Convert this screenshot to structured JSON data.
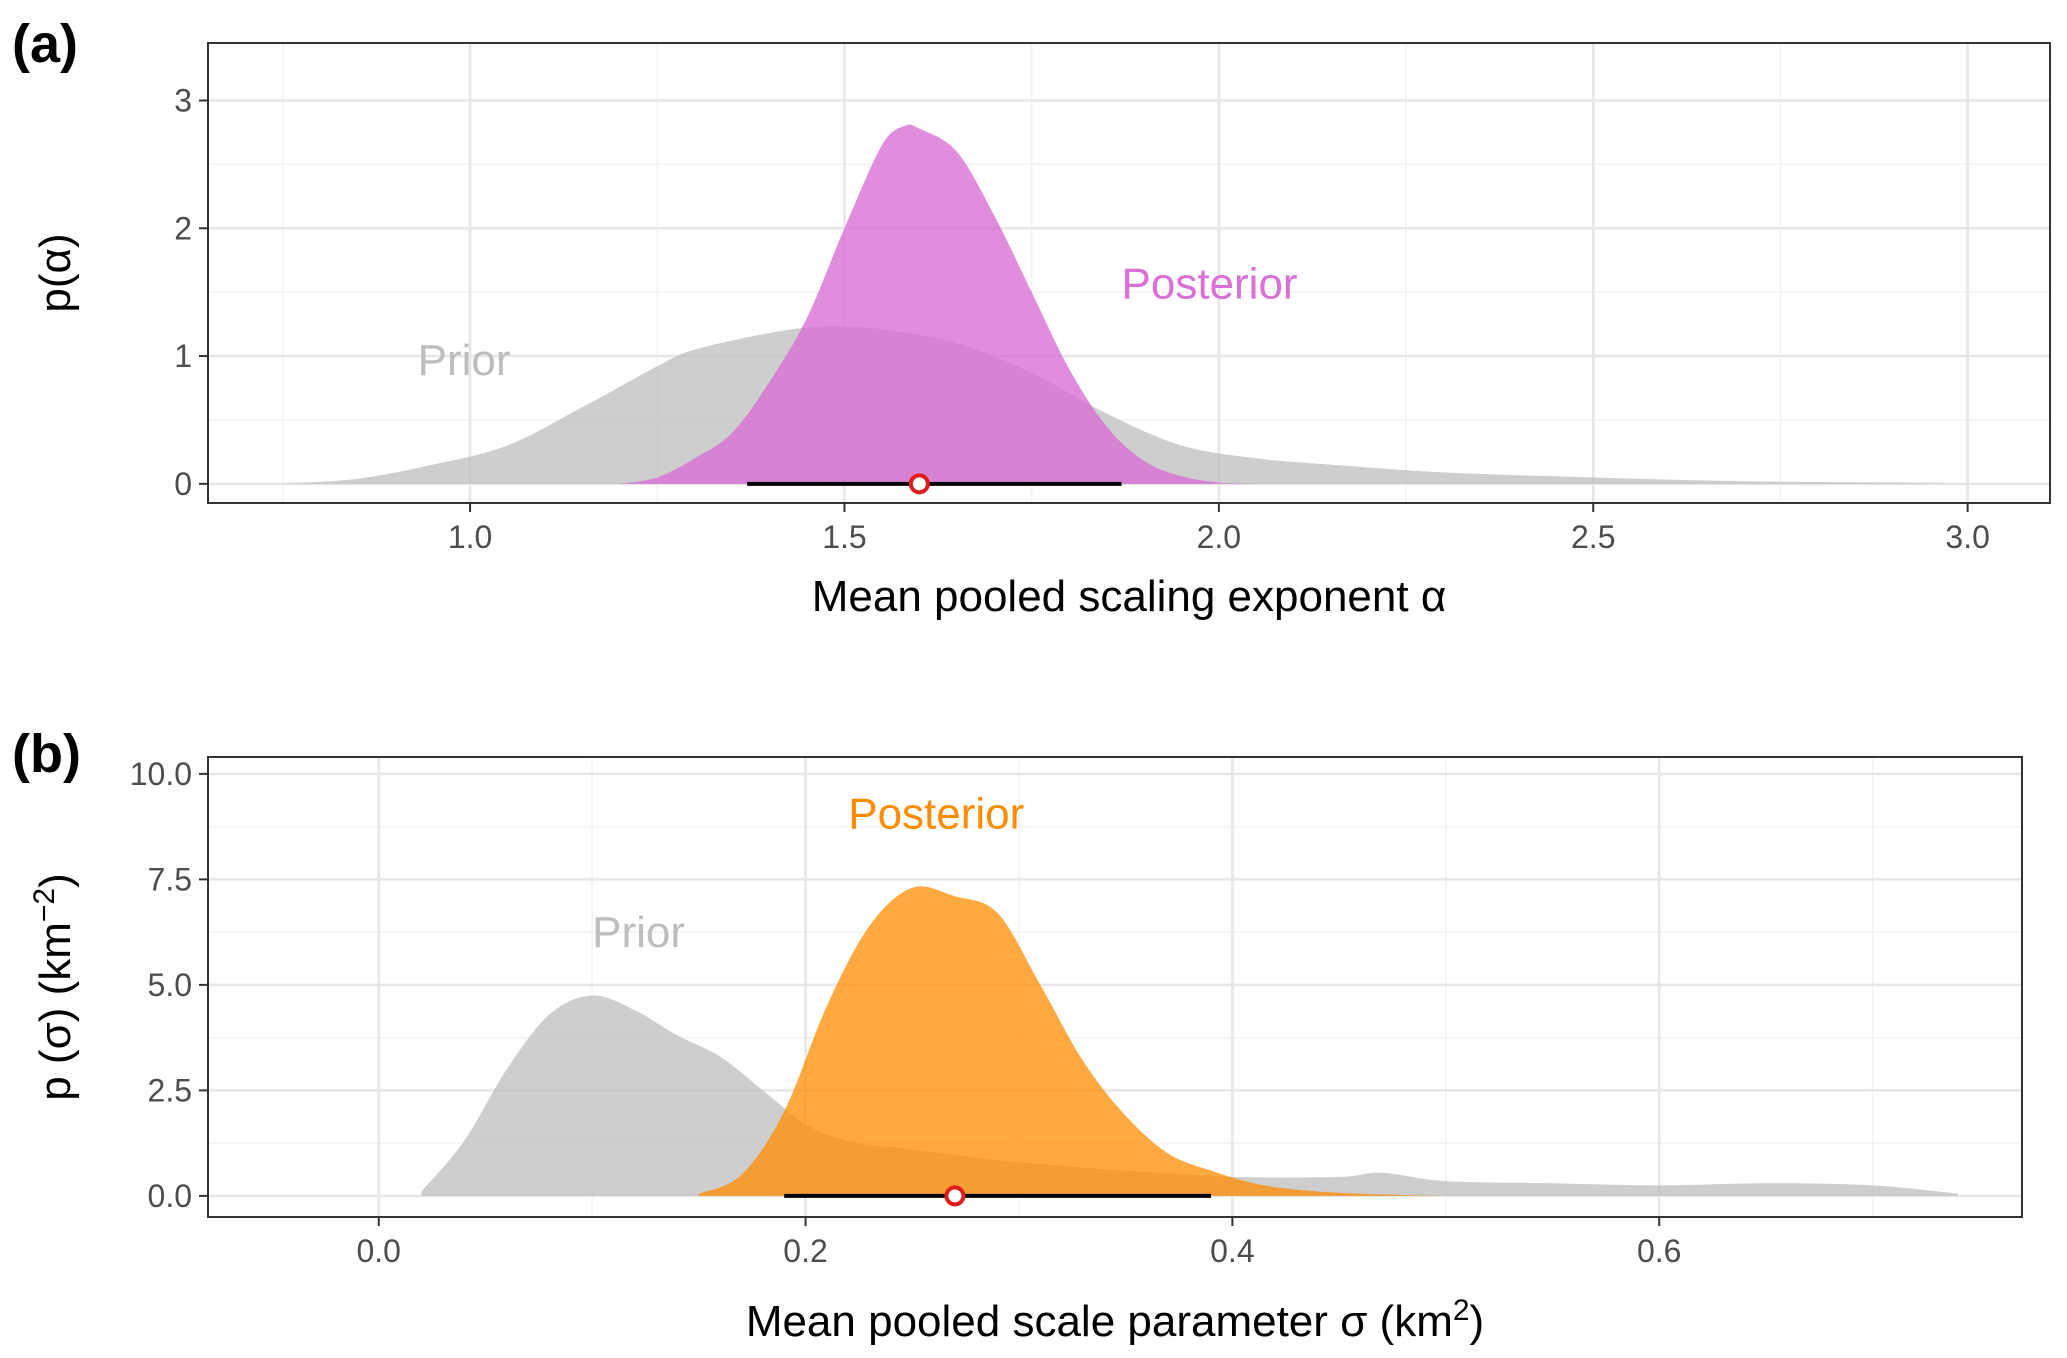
{
  "chart_data": [
    {
      "panel": "(a)",
      "type": "area",
      "xlabel": "Mean pooled scaling exponent α",
      "ylabel": "p(α)",
      "xlim": [
        0.65,
        3.11
      ],
      "ylim": [
        -0.15,
        3.45
      ],
      "xticks": [
        1.0,
        1.5,
        2.0,
        2.5,
        3.0
      ],
      "xtick_labels": [
        "1.0",
        "1.5",
        "2.0",
        "2.5",
        "3.0"
      ],
      "yticks": [
        0,
        1,
        2,
        3
      ],
      "ytick_labels": [
        "0",
        "1",
        "2",
        "3"
      ],
      "grid": true,
      "series": [
        {
          "name": "Prior",
          "color": "#bdbdbd",
          "opacity": 0.75,
          "label_pos": [
            0.93,
            0.85
          ],
          "x": [
            0.75,
            0.85,
            0.95,
            1.05,
            1.15,
            1.25,
            1.3,
            1.4,
            1.47,
            1.55,
            1.65,
            1.75,
            1.85,
            1.95,
            2.05,
            2.15,
            2.3,
            2.5,
            2.7,
            2.9,
            2.98
          ],
          "y": [
            0.0,
            0.04,
            0.15,
            0.3,
            0.6,
            0.92,
            1.05,
            1.18,
            1.23,
            1.21,
            1.1,
            0.87,
            0.55,
            0.3,
            0.2,
            0.15,
            0.09,
            0.05,
            0.02,
            0.01,
            0.0
          ]
        },
        {
          "name": "Posterior",
          "color": "#da70d6",
          "opacity": 0.8,
          "label_pos": [
            1.87,
            1.45
          ],
          "x": [
            1.2,
            1.25,
            1.3,
            1.35,
            1.4,
            1.45,
            1.5,
            1.55,
            1.58,
            1.6,
            1.65,
            1.7,
            1.75,
            1.8,
            1.85,
            1.9,
            1.95,
            2.0,
            2.05
          ],
          "y": [
            0.0,
            0.05,
            0.2,
            0.4,
            0.8,
            1.3,
            2.0,
            2.65,
            2.8,
            2.78,
            2.6,
            2.1,
            1.5,
            0.9,
            0.45,
            0.18,
            0.06,
            0.01,
            0.0
          ]
        }
      ],
      "interval": {
        "low": 1.37,
        "high": 1.87,
        "point": 1.6
      }
    },
    {
      "panel": "(b)",
      "type": "area",
      "xlabel": "Mean pooled scale parameter σ (km",
      "xlabel_sup": "2",
      "xlabel_end": ")",
      "ylabel": "p (σ) (km",
      "ylabel_sup": "−2",
      "ylabel_end": ")",
      "xlim": [
        -0.08,
        0.77
      ],
      "ylim": [
        -0.5,
        10.4
      ],
      "xticks": [
        0.0,
        0.2,
        0.4,
        0.6
      ],
      "xtick_labels": [
        "0.0",
        "0.2",
        "0.4",
        "0.6"
      ],
      "yticks": [
        0,
        2.5,
        5.0,
        7.5,
        10.0
      ],
      "ytick_labels": [
        "0.0",
        "2.5",
        "5.0",
        "7.5",
        "10.0"
      ],
      "grid": true,
      "series": [
        {
          "name": "Prior",
          "color": "#bdbdbd",
          "opacity": 0.75,
          "label_pos": [
            0.1,
            5.9
          ],
          "x": [
            0.02,
            0.04,
            0.06,
            0.08,
            0.1,
            0.12,
            0.14,
            0.16,
            0.18,
            0.2,
            0.22,
            0.25,
            0.3,
            0.35,
            0.4,
            0.45,
            0.47,
            0.5,
            0.55,
            0.6,
            0.65,
            0.7,
            0.74
          ],
          "y": [
            0.1,
            1.3,
            3.0,
            4.3,
            4.75,
            4.4,
            3.8,
            3.3,
            2.5,
            1.7,
            1.3,
            1.1,
            0.8,
            0.6,
            0.45,
            0.45,
            0.55,
            0.35,
            0.3,
            0.25,
            0.3,
            0.25,
            0.05
          ]
        },
        {
          "name": "Posterior",
          "color": "#ff8c00",
          "opacity": 0.75,
          "label_pos": [
            0.22,
            8.7
          ],
          "x": [
            0.15,
            0.17,
            0.19,
            0.21,
            0.23,
            0.25,
            0.27,
            0.29,
            0.31,
            0.33,
            0.35,
            0.37,
            0.39,
            0.41,
            0.43,
            0.46,
            0.5
          ],
          "y": [
            0.05,
            0.5,
            2.0,
            4.5,
            6.4,
            7.3,
            7.1,
            6.7,
            5.0,
            3.2,
            1.9,
            1.0,
            0.6,
            0.3,
            0.15,
            0.05,
            0.0
          ]
        }
      ],
      "interval": {
        "low": 0.19,
        "high": 0.39,
        "point": 0.27
      }
    }
  ]
}
